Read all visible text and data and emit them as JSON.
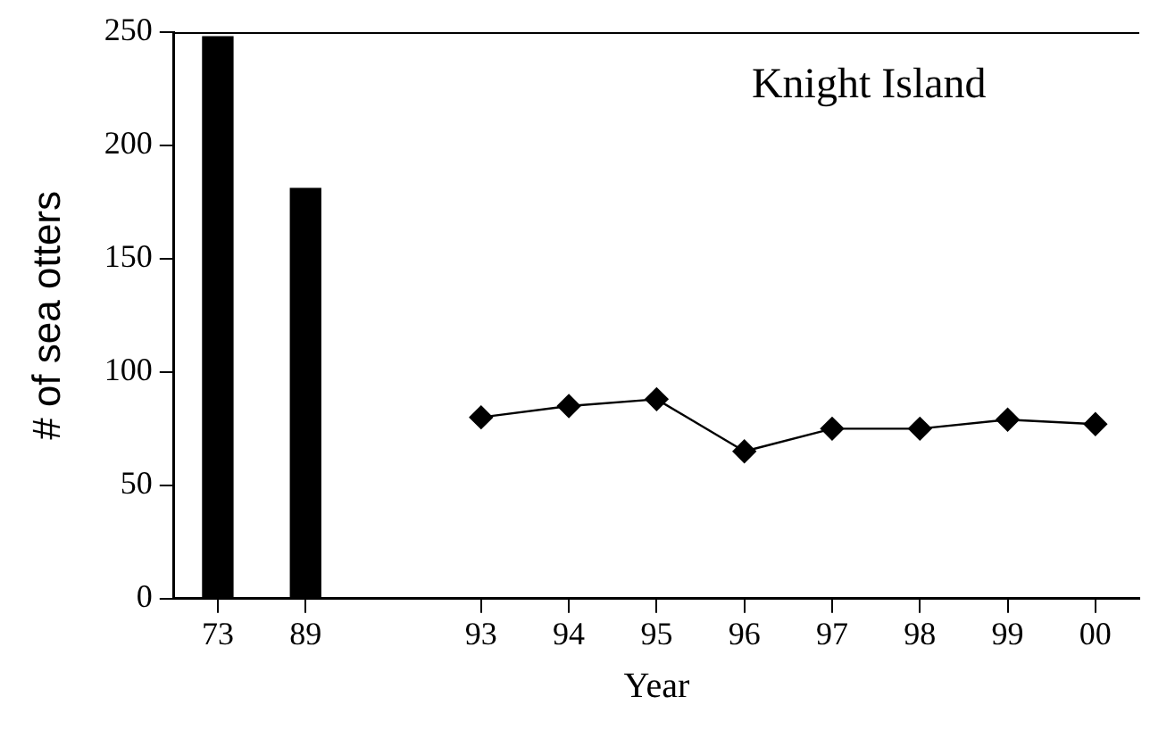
{
  "chart_data": {
    "type": "bar",
    "title": "Knight Island",
    "xlabel": "Year",
    "ylabel": "# of sea otters",
    "categories": [
      "73",
      "89",
      null,
      "93",
      "94",
      "95",
      "96",
      "97",
      "98",
      "99",
      "00"
    ],
    "series": [
      {
        "color": "#000000",
        "values": [
          248,
          181,
          null,
          null,
          null,
          null,
          null,
          null,
          null,
          null,
          null
        ]
      },
      {
        "type": "line",
        "color": "#000000",
        "values": [
          null,
          null,
          null,
          80,
          85,
          88,
          65,
          75,
          75,
          79,
          77
        ]
      }
    ],
    "ylim": [
      0,
      250
    ],
    "yticks": [
      0,
      50,
      100,
      150,
      200,
      250
    ],
    "marker": "diamond",
    "line_style": "solid"
  }
}
